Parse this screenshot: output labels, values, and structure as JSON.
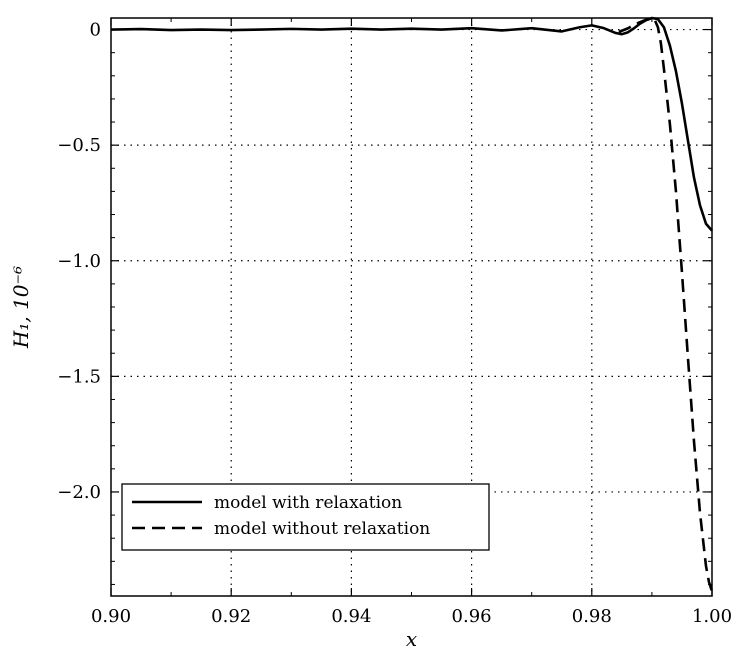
{
  "chart_data": {
    "type": "line",
    "title": "",
    "xlabel": "x",
    "ylabel": "H₁, 10⁻⁶",
    "xlim": [
      0.9,
      1.0
    ],
    "ylim": [
      -2.45,
      0.05
    ],
    "x_ticks": [
      0.9,
      0.92,
      0.94,
      0.96,
      0.98,
      1.0
    ],
    "x_tick_labels": [
      "0.90",
      "0.92",
      "0.94",
      "0.96",
      "0.98",
      "1.00"
    ],
    "y_ticks": [
      0,
      -0.5,
      -1.0,
      -1.5,
      -2.0
    ],
    "y_tick_labels": [
      "0",
      "−0.5",
      "−1.0",
      "−1.5",
      "−2.0"
    ],
    "grid": true,
    "legend_position": "bottom-left",
    "series": [
      {
        "name": "model with relaxation",
        "style": "solid",
        "color": "#000000",
        "points": [
          [
            0.9,
            0.0
          ],
          [
            0.905,
            0.002
          ],
          [
            0.91,
            -0.002
          ],
          [
            0.915,
            0.0
          ],
          [
            0.92,
            -0.002
          ],
          [
            0.925,
            0.0
          ],
          [
            0.93,
            0.003
          ],
          [
            0.935,
            0.0
          ],
          [
            0.94,
            0.004
          ],
          [
            0.945,
            0.0
          ],
          [
            0.95,
            0.004
          ],
          [
            0.955,
            0.0
          ],
          [
            0.96,
            0.006
          ],
          [
            0.965,
            -0.004
          ],
          [
            0.97,
            0.006
          ],
          [
            0.975,
            -0.008
          ],
          [
            0.978,
            0.01
          ],
          [
            0.98,
            0.018
          ],
          [
            0.982,
            0.006
          ],
          [
            0.984,
            -0.015
          ],
          [
            0.985,
            -0.02
          ],
          [
            0.986,
            -0.012
          ],
          [
            0.987,
            0.005
          ],
          [
            0.988,
            0.025
          ],
          [
            0.989,
            0.04
          ],
          [
            0.99,
            0.05
          ],
          [
            0.991,
            0.045
          ],
          [
            0.992,
            0.01
          ],
          [
            0.993,
            -0.07
          ],
          [
            0.994,
            -0.18
          ],
          [
            0.995,
            -0.32
          ],
          [
            0.996,
            -0.48
          ],
          [
            0.997,
            -0.64
          ],
          [
            0.998,
            -0.76
          ],
          [
            0.999,
            -0.84
          ],
          [
            1.0,
            -0.87
          ]
        ]
      },
      {
        "name": "model without relaxation",
        "style": "dashed",
        "color": "#000000",
        "points": [
          [
            0.9845,
            -0.01
          ],
          [
            0.986,
            0.005
          ],
          [
            0.987,
            0.02
          ],
          [
            0.988,
            0.032
          ],
          [
            0.989,
            0.042
          ],
          [
            0.99,
            0.048
          ],
          [
            0.9905,
            0.04
          ],
          [
            0.991,
            0.01
          ],
          [
            0.9915,
            -0.06
          ],
          [
            0.992,
            -0.17
          ],
          [
            0.993,
            -0.41
          ],
          [
            0.994,
            -0.7
          ],
          [
            0.995,
            -1.05
          ],
          [
            0.996,
            -1.42
          ],
          [
            0.997,
            -1.78
          ],
          [
            0.998,
            -2.09
          ],
          [
            0.999,
            -2.32
          ],
          [
            0.9995,
            -2.39
          ],
          [
            1.0,
            -2.43
          ]
        ]
      }
    ]
  }
}
